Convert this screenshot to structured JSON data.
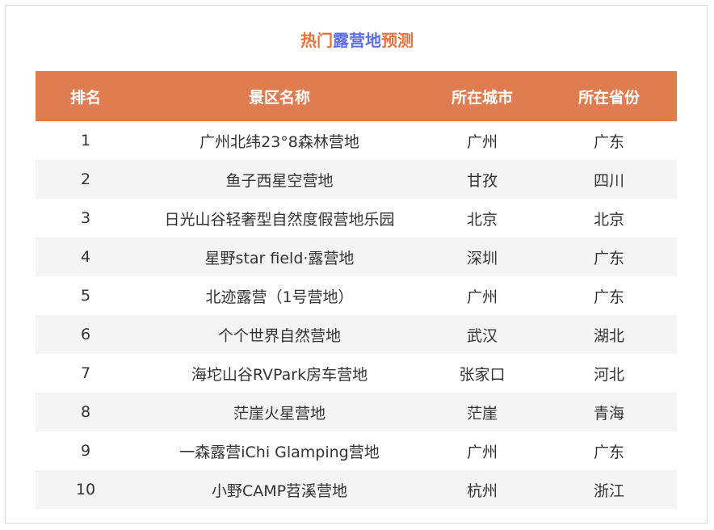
{
  "title": {
    "part1": "热门",
    "part2": "露营地",
    "part3": "预测"
  },
  "colors": {
    "header_bg": "#E07D50",
    "title_orange": "#E2743F",
    "title_blue": "#5B6FE3",
    "stripe": "#F4F4F4"
  },
  "columns": [
    "排名",
    "景区名称",
    "所在城市",
    "所在省份"
  ],
  "rows": [
    [
      "1",
      "广州北纬23°8森林营地",
      "广州",
      "广东"
    ],
    [
      "2",
      "鱼子西星空营地",
      "甘孜",
      "四川"
    ],
    [
      "3",
      "日光山谷轻奢型自然度假营地乐园",
      "北京",
      "北京"
    ],
    [
      "4",
      "星野star field·露营地",
      "深圳",
      "广东"
    ],
    [
      "5",
      "北迹露营（1号营地）",
      "广州",
      "广东"
    ],
    [
      "6",
      "个个世界自然营地",
      "武汉",
      "湖北"
    ],
    [
      "7",
      "海坨山谷RVPark房车营地",
      "张家口",
      "河北"
    ],
    [
      "8",
      "茫崖火星营地",
      "茫崖",
      "青海"
    ],
    [
      "9",
      "一森露营iChi Glamping营地",
      "广州",
      "广东"
    ],
    [
      "10",
      "小野CAMP苕溪营地",
      "杭州",
      "浙江"
    ]
  ]
}
